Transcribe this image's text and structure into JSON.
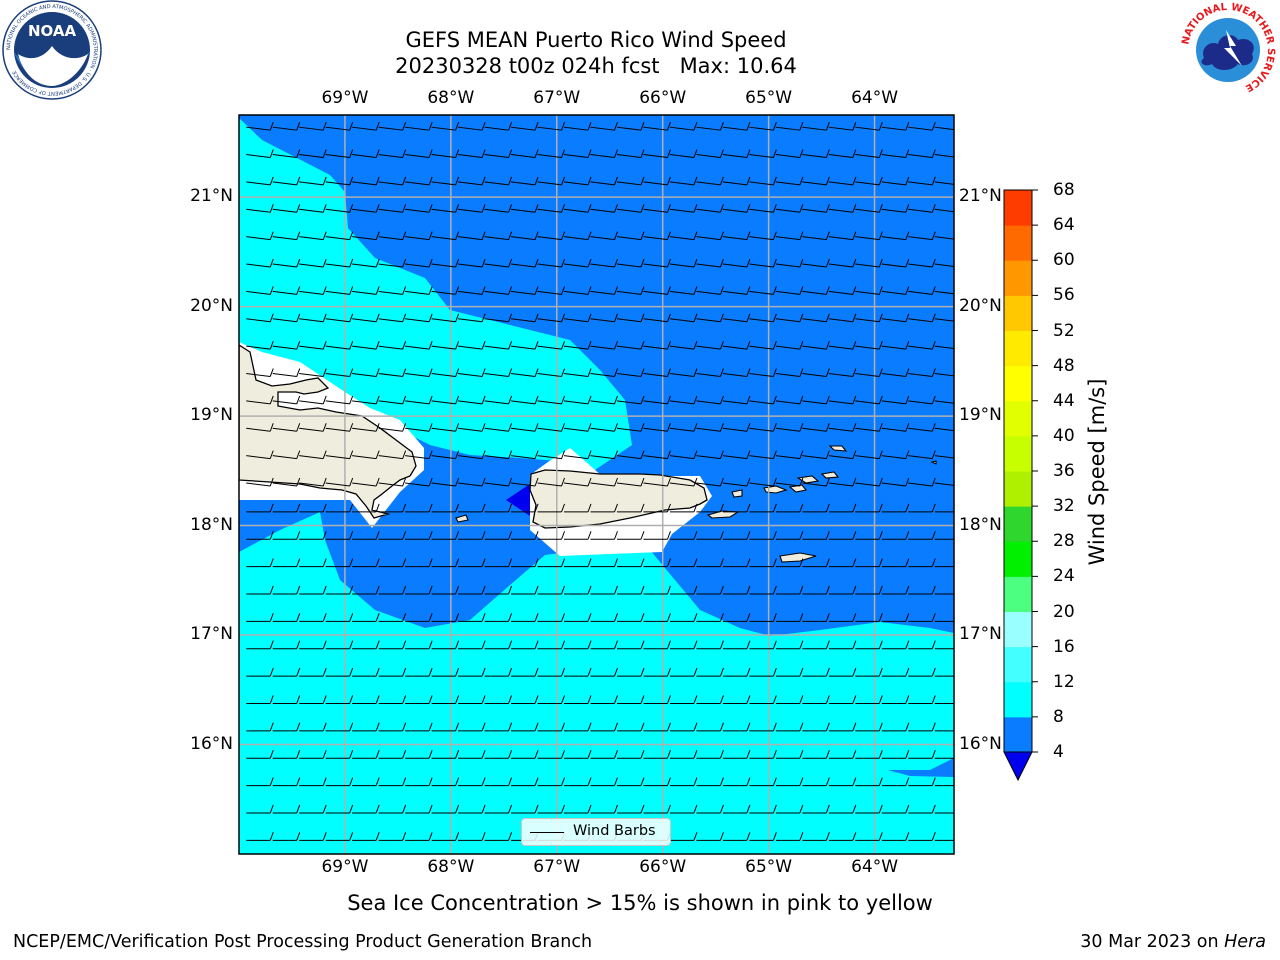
{
  "title": {
    "line1": "GEFS MEAN Puerto Rico Wind Speed",
    "line2": "20230328 t00z 024h fcst   Max: 10.64"
  },
  "map": {
    "lon_range": [
      -70.0,
      -63.25
    ],
    "lat_range": [
      15.0,
      21.75
    ],
    "lon_ticks": [
      {
        "value": -69,
        "label": "69°W"
      },
      {
        "value": -68,
        "label": "68°W"
      },
      {
        "value": -67,
        "label": "67°W"
      },
      {
        "value": -66,
        "label": "66°W"
      },
      {
        "value": -65,
        "label": "65°W"
      },
      {
        "value": -64,
        "label": "64°W"
      }
    ],
    "lat_ticks": [
      {
        "value": 21,
        "label": "21°N"
      },
      {
        "value": 20,
        "label": "20°N"
      },
      {
        "value": 19,
        "label": "19°N"
      },
      {
        "value": 18,
        "label": "18°N"
      },
      {
        "value": 17,
        "label": "17°N"
      },
      {
        "value": 16,
        "label": "16°N"
      }
    ],
    "gridlines": true,
    "wind_barbs": {
      "lon_spacing_deg": 0.25,
      "lat_spacing_deg": 0.25,
      "direction": "easterly"
    },
    "fill_colors": {
      "speed_4_8": "#0a7cff",
      "speed_8_12": "#00ffff",
      "below_4": "#0000ee",
      "land": "#efedde",
      "masked": "#ffffff"
    }
  },
  "legend": {
    "label": "Wind Barbs"
  },
  "colorbar": {
    "title": "Wind Speed [m/s]",
    "ticks": [
      "68",
      "64",
      "60",
      "56",
      "52",
      "48",
      "44",
      "40",
      "36",
      "32",
      "28",
      "24",
      "20",
      "16",
      "12",
      "8",
      "4"
    ],
    "colors": [
      "#0a7cff",
      "#00ffff",
      "#44ffff",
      "#9affff",
      "#4cff80",
      "#00f000",
      "#2ed62e",
      "#aff000",
      "#c8ff00",
      "#e2ff00",
      "#ffff00",
      "#ffea00",
      "#ffc800",
      "#ff9800",
      "#ff6a00",
      "#ff3c00",
      "#ff1a00"
    ],
    "under_color": "#0000ee",
    "extend": "min"
  },
  "subtitle": "Sea Ice Concentration > 15% is shown in pink to yellow",
  "footer": {
    "left": "NCEP/EMC/Verification Post Processing Product Generation Branch",
    "date": "30 Mar 2023 on ",
    "machine": "Hera"
  },
  "logos": {
    "left": {
      "text": "NOAA",
      "ring_text": "NATIONAL OCEANIC AND ATMOSPHERIC ADMINISTRATION · U.S. DEPARTMENT OF COMMERCE"
    },
    "right": {
      "ring_text": "NATIONAL WEATHER SERVICE"
    }
  }
}
